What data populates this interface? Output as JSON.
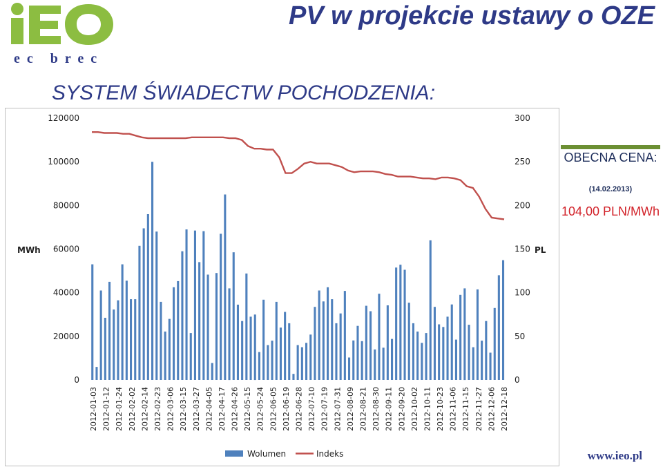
{
  "logo": {
    "letters": "iEO",
    "subtitle": "ec brec"
  },
  "header": {
    "title": "PV w projekcie ustawy o OZE"
  },
  "subtitle": "SYSTEM ŚWIADECTW POCHODZENIA:",
  "price_box": {
    "title": "OBECNA CENA:",
    "date": "(14.02.2013)",
    "value": "104,00 PLN/MWh"
  },
  "footer": {
    "url": "www.ieo.pl"
  },
  "colors": {
    "brand_blue": "#2e3a87",
    "logo_green": "#8cbd41",
    "bar": "#4f81bd",
    "line": "#c0504d",
    "price_red": "#d2232a",
    "price_green": "#6c8f33"
  },
  "chart_data": {
    "type": "bar",
    "left_axis": {
      "label": "MWh",
      "ticks": [
        "120000",
        "100000",
        "80000",
        "60000",
        "40000",
        "20000",
        "0"
      ],
      "ylim": [
        0,
        120000
      ]
    },
    "right_axis": {
      "label": "PL",
      "ticks": [
        "300",
        "250",
        "200",
        "150",
        "100",
        "50",
        "0"
      ],
      "ylim": [
        0,
        300
      ]
    },
    "category_labels": [
      "2012-01-03",
      "2012-01-12",
      "2012-01-24",
      "2012-02-02",
      "2012-02-14",
      "2012-02-23",
      "2012-03-06",
      "2012-03-15",
      "2012-03-27",
      "2012-04-05",
      "2012-04-17",
      "2012-04-26",
      "2012-05-15",
      "2012-05-24",
      "2012-06-05",
      "2012-06-19",
      "2012-06-28",
      "2012-07-10",
      "2012-07-19",
      "2012-07-31",
      "2012-08-09",
      "2012-08-21",
      "2012-08-30",
      "2012-09-11",
      "2012-09-20",
      "2012-10-02",
      "2012-10-11",
      "2012-10-23",
      "2012-11-06",
      "2012-11-15",
      "2012-11-27",
      "2012-12-06",
      "2012-12-18"
    ],
    "grid": false,
    "legend": {
      "position": "bottom",
      "entries": [
        "Wolumen",
        "Indeks"
      ]
    },
    "series": [
      {
        "name": "Wolumen",
        "type": "bar",
        "axis": "left",
        "values": [
          53000,
          6000,
          41000,
          28500,
          45000,
          32300,
          36500,
          53000,
          45500,
          37000,
          37000,
          61500,
          69500,
          76000,
          100000,
          68000,
          35800,
          22200,
          28000,
          42500,
          45300,
          59000,
          69000,
          21500,
          68500,
          54000,
          68200,
          48300,
          7800,
          49000,
          67000,
          85000,
          42000,
          58500,
          34500,
          27000,
          48800,
          29000,
          30000,
          12800,
          36800,
          16000,
          18000,
          35800,
          24000,
          31200,
          26000,
          2800,
          16000,
          15000,
          17000,
          20800,
          33500,
          41000,
          36000,
          42500,
          37000,
          26000,
          30500,
          40800,
          10300,
          18100,
          24800,
          17800,
          34000,
          31500,
          14000,
          39500,
          14800,
          34200,
          18800,
          51500,
          52800,
          50500,
          35400,
          26000,
          22200,
          17000,
          21500,
          64000,
          33500,
          25500,
          24300,
          29000,
          34600,
          18500,
          39000,
          42000,
          25300,
          15000,
          41500,
          18000,
          27000,
          12500,
          33000,
          48000,
          54900
        ]
      },
      {
        "name": "Indeks",
        "type": "line",
        "axis": "right",
        "values": [
          284,
          284,
          283,
          283,
          283,
          282,
          282,
          280,
          278,
          277,
          277,
          277,
          277,
          277,
          277,
          277,
          278,
          278,
          278,
          278,
          278,
          278,
          277,
          277,
          275,
          268,
          265,
          265,
          264,
          264,
          255,
          237,
          237,
          242,
          248,
          250,
          248,
          248,
          248,
          246,
          244,
          240,
          238,
          239,
          239,
          239,
          238,
          236,
          235,
          233,
          233,
          233,
          232,
          231,
          231,
          230,
          232,
          232,
          231,
          229,
          222,
          220,
          210,
          196,
          186,
          185,
          184
        ]
      }
    ]
  }
}
